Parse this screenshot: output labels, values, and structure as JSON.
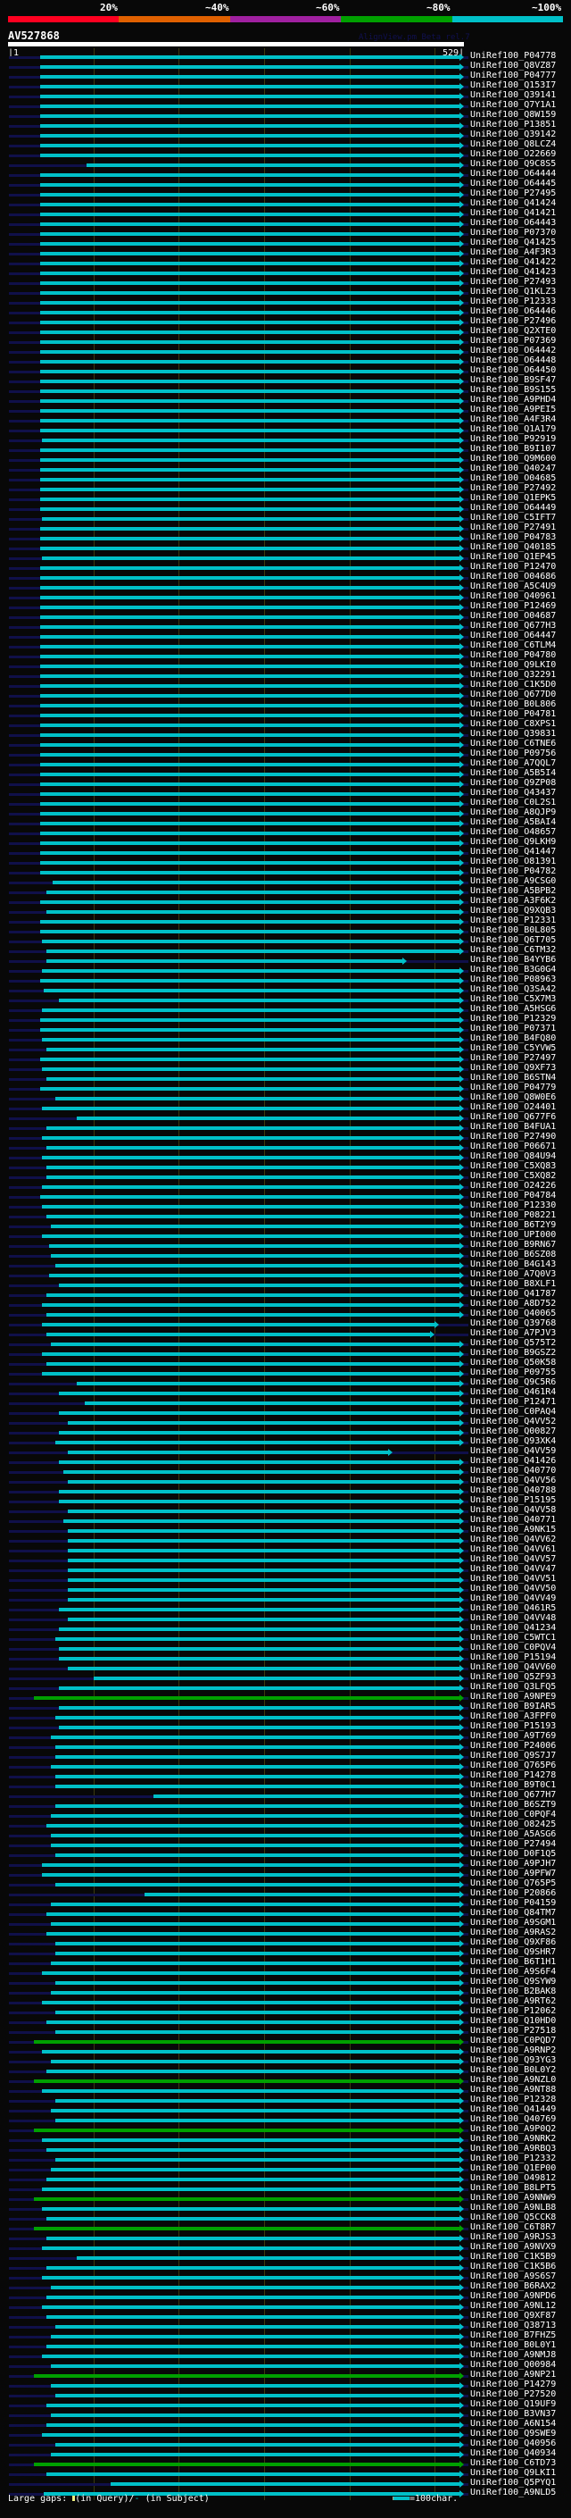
{
  "scale": {
    "labels": [
      "20%",
      "~40%",
      "~60%",
      "~80%",
      "~100%"
    ],
    "colors": [
      "#ff0020",
      "#e06000",
      "#a020a0",
      "#00a000",
      "#00c0c8"
    ]
  },
  "header": {
    "query_id": "AV527868",
    "credit": "AlignView.pm Beta rel.7",
    "query_start": "1",
    "query_end": "529"
  },
  "query_length": 529,
  "footer": {
    "large_gaps": "Large gaps:",
    "in_query": "(in Query)/",
    "dash": "-",
    "in_subject": "(in Subject)",
    "legend": "=100char."
  },
  "identity_colors": {
    "c": "#00c0c8",
    "g": "#00a000"
  },
  "rows": [
    [
      "UniRef100_P04778",
      38,
      529,
      "c"
    ],
    [
      "UniRef100_Q8VZ87",
      38,
      529,
      "c"
    ],
    [
      "UniRef100_P04777",
      38,
      529,
      "c"
    ],
    [
      "UniRef100_Q153I7",
      38,
      529,
      "c"
    ],
    [
      "UniRef100_Q39141",
      38,
      529,
      "c"
    ],
    [
      "UniRef100_Q7Y1A1",
      38,
      529,
      "c"
    ],
    [
      "UniRef100_Q8W159",
      38,
      529,
      "c"
    ],
    [
      "UniRef100_P13851",
      38,
      529,
      "c"
    ],
    [
      "UniRef100_Q39142",
      38,
      529,
      "c"
    ],
    [
      "UniRef100_Q8LCZ4",
      38,
      529,
      "c"
    ],
    [
      "UniRef100_O22669",
      38,
      529,
      "c"
    ],
    [
      "UniRef100_Q9C8S5",
      92,
      529,
      "c"
    ],
    [
      "UniRef100_O64444",
      38,
      529,
      "c"
    ],
    [
      "UniRef100_O64445",
      38,
      529,
      "c"
    ],
    [
      "UniRef100_P27495",
      38,
      529,
      "c"
    ],
    [
      "UniRef100_Q41424",
      38,
      529,
      "c"
    ],
    [
      "UniRef100_Q41421",
      38,
      529,
      "c"
    ],
    [
      "UniRef100_O64443",
      38,
      529,
      "c"
    ],
    [
      "UniRef100_P07370",
      38,
      529,
      "c"
    ],
    [
      "UniRef100_Q41425",
      38,
      529,
      "c"
    ],
    [
      "UniRef100_A4F3R3",
      38,
      529,
      "c"
    ],
    [
      "UniRef100_Q41422",
      38,
      529,
      "c"
    ],
    [
      "UniRef100_Q41423",
      38,
      529,
      "c"
    ],
    [
      "UniRef100_P27493",
      38,
      529,
      "c"
    ],
    [
      "UniRef100_Q1KLZ3",
      38,
      529,
      "c"
    ],
    [
      "UniRef100_P12333",
      38,
      529,
      "c"
    ],
    [
      "UniRef100_O64446",
      38,
      529,
      "c"
    ],
    [
      "UniRef100_P27496",
      38,
      529,
      "c"
    ],
    [
      "UniRef100_Q2XTE0",
      38,
      529,
      "c"
    ],
    [
      "UniRef100_P07369",
      38,
      529,
      "c"
    ],
    [
      "UniRef100_O64442",
      38,
      529,
      "c"
    ],
    [
      "UniRef100_O64448",
      38,
      529,
      "c"
    ],
    [
      "UniRef100_O64450",
      38,
      529,
      "c"
    ],
    [
      "UniRef100_B9SF47",
      38,
      529,
      "c"
    ],
    [
      "UniRef100_B9S155",
      38,
      529,
      "c"
    ],
    [
      "UniRef100_A9PHD4",
      38,
      529,
      "c"
    ],
    [
      "UniRef100_A9PEI5",
      38,
      529,
      "c"
    ],
    [
      "UniRef100_A4F3R4",
      38,
      529,
      "c"
    ],
    [
      "UniRef100_Q1A179",
      38,
      529,
      "c"
    ],
    [
      "UniRef100_P92919",
      40,
      529,
      "c"
    ],
    [
      "UniRef100_B9I107",
      38,
      529,
      "c"
    ],
    [
      "UniRef100_Q9M600",
      38,
      529,
      "c"
    ],
    [
      "UniRef100_Q40247",
      38,
      529,
      "c"
    ],
    [
      "UniRef100_O04685",
      38,
      529,
      "c"
    ],
    [
      "UniRef100_P27492",
      38,
      529,
      "c"
    ],
    [
      "UniRef100_Q1EPK5",
      38,
      529,
      "c"
    ],
    [
      "UniRef100_O64449",
      38,
      529,
      "c"
    ],
    [
      "UniRef100_C5IFT7",
      40,
      529,
      "c"
    ],
    [
      "UniRef100_P27491",
      38,
      529,
      "c"
    ],
    [
      "UniRef100_P04783",
      38,
      529,
      "c"
    ],
    [
      "UniRef100_Q40185",
      38,
      529,
      "c"
    ],
    [
      "UniRef100_Q1EP45",
      40,
      529,
      "c"
    ],
    [
      "UniRef100_P12470",
      38,
      529,
      "c"
    ],
    [
      "UniRef100_O04686",
      38,
      529,
      "c"
    ],
    [
      "UniRef100_A5C4U9",
      38,
      529,
      "c"
    ],
    [
      "UniRef100_Q40961",
      38,
      529,
      "c"
    ],
    [
      "UniRef100_P12469",
      38,
      529,
      "c"
    ],
    [
      "UniRef100_O04687",
      38,
      529,
      "c"
    ],
    [
      "UniRef100_Q677H3",
      38,
      529,
      "c"
    ],
    [
      "UniRef100_O64447",
      38,
      529,
      "c"
    ],
    [
      "UniRef100_C6TLM4",
      38,
      529,
      "c"
    ],
    [
      "UniRef100_P04780",
      38,
      529,
      "c"
    ],
    [
      "UniRef100_Q9LKI0",
      38,
      529,
      "c"
    ],
    [
      "UniRef100_Q32291",
      38,
      529,
      "c"
    ],
    [
      "UniRef100_C1K5D0",
      38,
      529,
      "c"
    ],
    [
      "UniRef100_Q677D0",
      38,
      529,
      "c"
    ],
    [
      "UniRef100_B0L806",
      38,
      529,
      "c"
    ],
    [
      "UniRef100_P04781",
      38,
      529,
      "c"
    ],
    [
      "UniRef100_C8XPS1",
      38,
      529,
      "c"
    ],
    [
      "UniRef100_Q39831",
      38,
      529,
      "c"
    ],
    [
      "UniRef100_C6TNE6",
      38,
      529,
      "c"
    ],
    [
      "UniRef100_P09756",
      38,
      529,
      "c"
    ],
    [
      "UniRef100_A7QQL7",
      38,
      529,
      "c"
    ],
    [
      "UniRef100_A5B5I4",
      38,
      529,
      "c"
    ],
    [
      "UniRef100_Q9ZP08",
      38,
      529,
      "c"
    ],
    [
      "UniRef100_Q43437",
      38,
      529,
      "c"
    ],
    [
      "UniRef100_C0L2S1",
      38,
      529,
      "c"
    ],
    [
      "UniRef100_A8QJP9",
      38,
      529,
      "c"
    ],
    [
      "UniRef100_A5BAI4",
      38,
      529,
      "c"
    ],
    [
      "UniRef100_O48657",
      38,
      529,
      "c"
    ],
    [
      "UniRef100_Q9LKH9",
      38,
      529,
      "c"
    ],
    [
      "UniRef100_Q41447",
      38,
      529,
      "c"
    ],
    [
      "UniRef100_O81391",
      38,
      529,
      "c"
    ],
    [
      "UniRef100_P04782",
      38,
      529,
      "c"
    ],
    [
      "UniRef100_A9CSG0",
      52,
      529,
      "c"
    ],
    [
      "UniRef100_A5BPB2",
      45,
      529,
      "c"
    ],
    [
      "UniRef100_A3F6K2",
      38,
      529,
      "c"
    ],
    [
      "UniRef100_Q9XQB3",
      45,
      529,
      "c"
    ],
    [
      "UniRef100_P12331",
      38,
      529,
      "c"
    ],
    [
      "UniRef100_B0L805",
      38,
      529,
      "c"
    ],
    [
      "UniRef100_Q6T705",
      40,
      529,
      "c"
    ],
    [
      "UniRef100_C6TM32",
      45,
      529,
      "c"
    ],
    [
      "UniRef100_B4YYB6",
      45,
      462,
      "c"
    ],
    [
      "UniRef100_B3G0G4",
      40,
      529,
      "c"
    ],
    [
      "UniRef100_P08963",
      38,
      529,
      "c"
    ],
    [
      "UniRef100_Q3SA42",
      42,
      529,
      "c"
    ],
    [
      "UniRef100_C5X7M3",
      60,
      529,
      "c"
    ],
    [
      "UniRef100_A5HSG6",
      40,
      529,
      "c"
    ],
    [
      "UniRef100_P12329",
      38,
      529,
      "c"
    ],
    [
      "UniRef100_P07371",
      38,
      529,
      "c"
    ],
    [
      "UniRef100_B4FQ80",
      40,
      529,
      "c"
    ],
    [
      "UniRef100_C5YVW5",
      45,
      529,
      "c"
    ],
    [
      "UniRef100_P27497",
      38,
      529,
      "c"
    ],
    [
      "UniRef100_Q9XF73",
      40,
      529,
      "c"
    ],
    [
      "UniRef100_B6STN4",
      45,
      529,
      "c"
    ],
    [
      "UniRef100_P04779",
      38,
      529,
      "c"
    ],
    [
      "UniRef100_Q8W0E6",
      55,
      529,
      "c"
    ],
    [
      "UniRef100_O24401",
      40,
      529,
      "c"
    ],
    [
      "UniRef100_Q677F6",
      80,
      529,
      "c"
    ],
    [
      "UniRef100_B4FUA1",
      45,
      529,
      "c"
    ],
    [
      "UniRef100_P27490",
      40,
      529,
      "c"
    ],
    [
      "UniRef100_P06671",
      45,
      529,
      "c"
    ],
    [
      "UniRef100_Q84U94",
      40,
      529,
      "c"
    ],
    [
      "UniRef100_C5XQ83",
      45,
      529,
      "c"
    ],
    [
      "UniRef100_C5XQ82",
      45,
      529,
      "c"
    ],
    [
      "UniRef100_O24226",
      40,
      529,
      "c"
    ],
    [
      "UniRef100_P04784",
      38,
      529,
      "c"
    ],
    [
      "UniRef100_P12330",
      40,
      529,
      "c"
    ],
    [
      "UniRef100_P08221",
      45,
      529,
      "c"
    ],
    [
      "UniRef100_B6T2Y9",
      50,
      529,
      "c"
    ],
    [
      "UniRef100_UPI000",
      40,
      529,
      "c"
    ],
    [
      "UniRef100_B9RN67",
      48,
      529,
      "c"
    ],
    [
      "UniRef100_B6SZ08",
      50,
      529,
      "c"
    ],
    [
      "UniRef100_B4G143",
      55,
      529,
      "c"
    ],
    [
      "UniRef100_A7Q0V3",
      48,
      529,
      "c"
    ],
    [
      "UniRef100_B8XLF1",
      60,
      529,
      "c"
    ],
    [
      "UniRef100_Q41787",
      45,
      529,
      "c"
    ],
    [
      "UniRef100_A8D752",
      40,
      529,
      "c"
    ],
    [
      "UniRef100_Q40065",
      45,
      529,
      "c"
    ],
    [
      "UniRef100_Q39768",
      40,
      500,
      "c"
    ],
    [
      "UniRef100_A7PJV3",
      45,
      495,
      "c"
    ],
    [
      "UniRef100_Q575T2",
      50,
      529,
      "c"
    ],
    [
      "UniRef100_B9GSZ2",
      40,
      529,
      "c"
    ],
    [
      "UniRef100_Q50K58",
      45,
      529,
      "c"
    ],
    [
      "UniRef100_P09755",
      40,
      529,
      "c"
    ],
    [
      "UniRef100_Q9C5R6",
      80,
      529,
      "c"
    ],
    [
      "UniRef100_Q461R4",
      60,
      529,
      "c"
    ],
    [
      "UniRef100_P12471",
      90,
      529,
      "c"
    ],
    [
      "UniRef100_C0PAQ4",
      60,
      529,
      "c"
    ],
    [
      "UniRef100_Q4VV52",
      70,
      529,
      "c"
    ],
    [
      "UniRef100_Q00827",
      60,
      529,
      "c"
    ],
    [
      "UniRef100_Q93XK4",
      55,
      529,
      "c"
    ],
    [
      "UniRef100_Q4VV59",
      70,
      445,
      "c"
    ],
    [
      "UniRef100_Q41426",
      60,
      529,
      "c"
    ],
    [
      "UniRef100_Q40770",
      65,
      529,
      "c"
    ],
    [
      "UniRef100_Q4VV56",
      70,
      529,
      "c"
    ],
    [
      "UniRef100_Q40788",
      60,
      529,
      "c"
    ],
    [
      "UniRef100_P15195",
      60,
      529,
      "c"
    ],
    [
      "UniRef100_Q4VV58",
      70,
      529,
      "c"
    ],
    [
      "UniRef100_Q40771",
      65,
      529,
      "c"
    ],
    [
      "UniRef100_A9NK15",
      70,
      529,
      "c"
    ],
    [
      "UniRef100_Q4VV62",
      70,
      529,
      "c"
    ],
    [
      "UniRef100_Q4VV61",
      70,
      529,
      "c"
    ],
    [
      "UniRef100_Q4VV57",
      70,
      529,
      "c"
    ],
    [
      "UniRef100_Q4VV47",
      70,
      529,
      "c"
    ],
    [
      "UniRef100_Q4VV51",
      70,
      529,
      "c"
    ],
    [
      "UniRef100_Q4VV50",
      70,
      529,
      "c"
    ],
    [
      "UniRef100_Q4VV49",
      70,
      529,
      "c"
    ],
    [
      "UniRef100_Q461R5",
      60,
      529,
      "c"
    ],
    [
      "UniRef100_Q4VV48",
      70,
      529,
      "c"
    ],
    [
      "UniRef100_Q41234",
      60,
      529,
      "c"
    ],
    [
      "UniRef100_C5WTC1",
      55,
      529,
      "c"
    ],
    [
      "UniRef100_C0PQV4",
      60,
      529,
      "c"
    ],
    [
      "UniRef100_P15194",
      60,
      529,
      "c"
    ],
    [
      "UniRef100_Q4VV60",
      70,
      529,
      "c"
    ],
    [
      "UniRef100_Q5ZF93",
      100,
      529,
      "c"
    ],
    [
      "UniRef100_Q3LFQ5",
      60,
      529,
      "c"
    ],
    [
      "UniRef100_A9NPE9",
      30,
      529,
      "g"
    ],
    [
      "UniRef100_B9IAR5",
      60,
      529,
      "c"
    ],
    [
      "UniRef100_A3FPF0",
      55,
      529,
      "c"
    ],
    [
      "UniRef100_P15193",
      60,
      529,
      "c"
    ],
    [
      "UniRef100_A9T769",
      50,
      529,
      "c"
    ],
    [
      "UniRef100_P24006",
      55,
      529,
      "c"
    ],
    [
      "UniRef100_Q9S7J7",
      55,
      529,
      "c"
    ],
    [
      "UniRef100_Q765P6",
      50,
      529,
      "c"
    ],
    [
      "UniRef100_P14278",
      55,
      529,
      "c"
    ],
    [
      "UniRef100_B9T0C1",
      55,
      529,
      "c"
    ],
    [
      "UniRef100_Q677H7",
      170,
      529,
      "c"
    ],
    [
      "UniRef100_B6SZT9",
      55,
      529,
      "c"
    ],
    [
      "UniRef100_C0PQF4",
      50,
      529,
      "c"
    ],
    [
      "UniRef100_O82425",
      45,
      529,
      "c"
    ],
    [
      "UniRef100_A5ASG6",
      50,
      529,
      "c"
    ],
    [
      "UniRef100_P27494",
      50,
      529,
      "c"
    ],
    [
      "UniRef100_D0F1Q5",
      55,
      529,
      "c"
    ],
    [
      "UniRef100_A9PJH7",
      40,
      529,
      "c"
    ],
    [
      "UniRef100_A9PFW7",
      40,
      529,
      "c"
    ],
    [
      "UniRef100_Q765P5",
      55,
      529,
      "c"
    ],
    [
      "UniRef100_P20866",
      160,
      529,
      "c"
    ],
    [
      "UniRef100_P04159",
      50,
      529,
      "c"
    ],
    [
      "UniRef100_Q84TM7",
      45,
      529,
      "c"
    ],
    [
      "UniRef100_A9SGM1",
      50,
      529,
      "c"
    ],
    [
      "UniRef100_A9RAS2",
      45,
      529,
      "c"
    ],
    [
      "UniRef100_Q9XF86",
      55,
      529,
      "c"
    ],
    [
      "UniRef100_Q9SHR7",
      55,
      529,
      "c"
    ],
    [
      "UniRef100_B6T1H1",
      50,
      529,
      "c"
    ],
    [
      "UniRef100_A9S6F4",
      40,
      529,
      "c"
    ],
    [
      "UniRef100_Q9SYW9",
      55,
      529,
      "c"
    ],
    [
      "UniRef100_B2BAK8",
      50,
      529,
      "c"
    ],
    [
      "UniRef100_A9RT62",
      40,
      529,
      "c"
    ],
    [
      "UniRef100_P12062",
      55,
      529,
      "c"
    ],
    [
      "UniRef100_Q10HD0",
      45,
      529,
      "c"
    ],
    [
      "UniRef100_P27518",
      55,
      529,
      "c"
    ],
    [
      "UniRef100_C0PQD7",
      30,
      529,
      "g"
    ],
    [
      "UniRef100_A9RNP2",
      40,
      529,
      "c"
    ],
    [
      "UniRef100_Q93YG3",
      50,
      529,
      "c"
    ],
    [
      "UniRef100_B0L0Y2",
      45,
      529,
      "c"
    ],
    [
      "UniRef100_A9NZL0",
      30,
      529,
      "g"
    ],
    [
      "UniRef100_A9NT88",
      40,
      529,
      "c"
    ],
    [
      "UniRef100_P12328",
      55,
      529,
      "c"
    ],
    [
      "UniRef100_Q41449",
      50,
      529,
      "c"
    ],
    [
      "UniRef100_Q40769",
      55,
      529,
      "c"
    ],
    [
      "UniRef100_A9P0Q2",
      30,
      529,
      "g"
    ],
    [
      "UniRef100_A9NRK2",
      40,
      529,
      "c"
    ],
    [
      "UniRef100_A9RBQ3",
      45,
      529,
      "c"
    ],
    [
      "UniRef100_P12332",
      55,
      529,
      "c"
    ],
    [
      "UniRef100_Q1EP00",
      50,
      529,
      "c"
    ],
    [
      "UniRef100_O49812",
      45,
      529,
      "c"
    ],
    [
      "UniRef100_B8LPT5",
      40,
      529,
      "c"
    ],
    [
      "UniRef100_A9NNW9",
      30,
      529,
      "g"
    ],
    [
      "UniRef100_A9NLB8",
      40,
      529,
      "c"
    ],
    [
      "UniRef100_Q5CCK8",
      45,
      529,
      "c"
    ],
    [
      "UniRef100_C6T8R7",
      30,
      529,
      "g"
    ],
    [
      "UniRef100_A9RJS3",
      45,
      529,
      "c"
    ],
    [
      "UniRef100_A9NVX9",
      40,
      529,
      "c"
    ],
    [
      "UniRef100_C1K5B9",
      80,
      529,
      "c"
    ],
    [
      "UniRef100_C1K5B6",
      45,
      529,
      "c"
    ],
    [
      "UniRef100_A9S6S7",
      40,
      529,
      "c"
    ],
    [
      "UniRef100_B6RAX2",
      50,
      529,
      "c"
    ],
    [
      "UniRef100_A9NPD6",
      45,
      529,
      "c"
    ],
    [
      "UniRef100_A9NL12",
      40,
      529,
      "c"
    ],
    [
      "UniRef100_Q9XF87",
      45,
      529,
      "c"
    ],
    [
      "UniRef100_Q38713",
      55,
      529,
      "c"
    ],
    [
      "UniRef100_B7FHZ5",
      50,
      529,
      "c"
    ],
    [
      "UniRef100_B0L0Y1",
      45,
      529,
      "c"
    ],
    [
      "UniRef100_A9NMJ8",
      40,
      529,
      "c"
    ],
    [
      "UniRef100_Q00984",
      50,
      529,
      "c"
    ],
    [
      "UniRef100_A9NP21",
      30,
      529,
      "g"
    ],
    [
      "UniRef100_P14279",
      50,
      529,
      "c"
    ],
    [
      "UniRef100_P27520",
      55,
      529,
      "c"
    ],
    [
      "UniRef100_Q19UF9",
      45,
      529,
      "c"
    ],
    [
      "UniRef100_B3VN37",
      50,
      529,
      "c"
    ],
    [
      "UniRef100_A6N154",
      45,
      529,
      "c"
    ],
    [
      "UniRef100_Q9SWE9",
      40,
      529,
      "c"
    ],
    [
      "UniRef100_Q40956",
      55,
      529,
      "c"
    ],
    [
      "UniRef100_Q40934",
      50,
      529,
      "c"
    ],
    [
      "UniRef100_C6TD73",
      30,
      529,
      "g"
    ],
    [
      "UniRef100_Q9LKI1",
      45,
      529,
      "c"
    ],
    [
      "UniRef100_Q5PYQ1",
      120,
      529,
      "c"
    ],
    [
      "UniRef100_A9NLD5",
      42,
      529,
      "c"
    ]
  ]
}
